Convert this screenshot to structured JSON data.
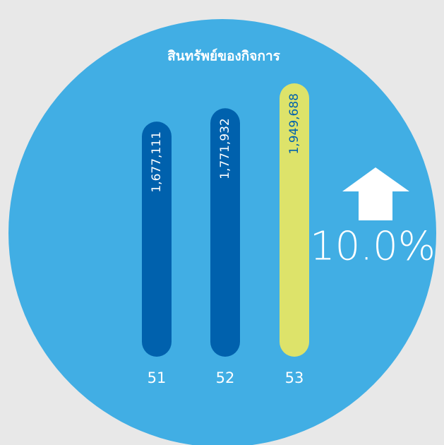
{
  "chart_data": {
    "type": "bar",
    "title": "สินทรัพย์ของกิจการ",
    "categories": [
      "51",
      "52",
      "53"
    ],
    "values": [
      1677111,
      1771932,
      1949688
    ],
    "value_labels": [
      "1,677,111",
      "1,771,932",
      "1,949,688"
    ],
    "colors": [
      "#0061ad",
      "#0061ad",
      "#dde36a"
    ],
    "value_label_colors": [
      "#ffffff",
      "#ffffff",
      "#0061ad"
    ],
    "annotation": "10.0%"
  }
}
